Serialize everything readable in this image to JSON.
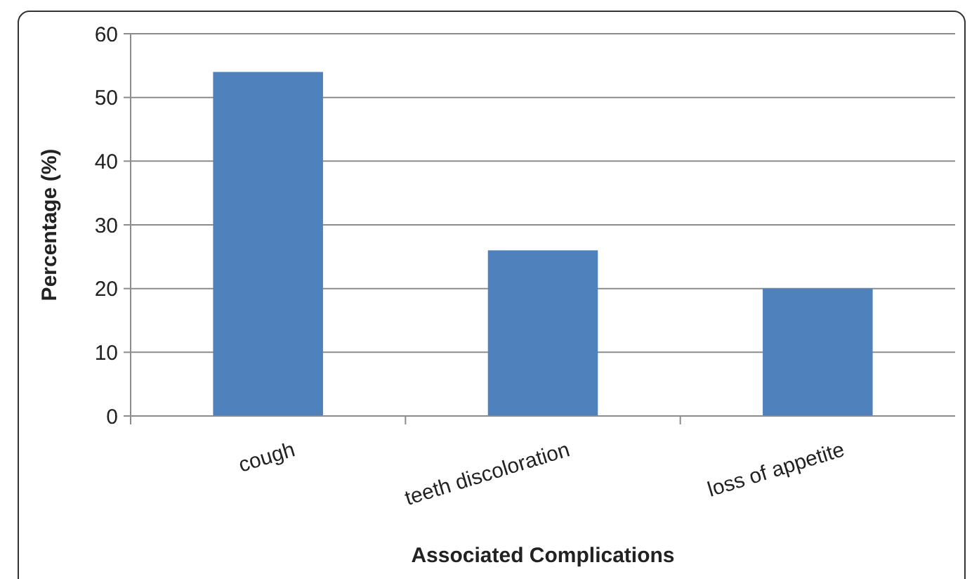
{
  "chart_data": {
    "type": "bar",
    "xlabel": "Associated Complications",
    "ylabel": "Percentage (%)",
    "categories": [
      "cough",
      "teeth discoloration",
      "loss of appetite"
    ],
    "values": [
      54,
      26,
      20
    ],
    "color": "#4f81bd",
    "ylim": [
      0,
      60
    ],
    "yticks": [
      0,
      10,
      20,
      30,
      40,
      50,
      60
    ],
    "grid": "y"
  }
}
